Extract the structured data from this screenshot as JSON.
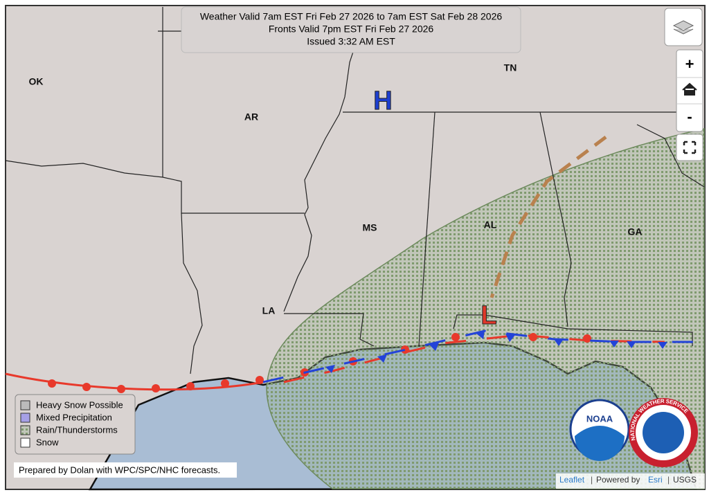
{
  "header": {
    "lines": [
      "Weather Valid 7am EST Fri Feb 27 2026 to 7am EST Sat Feb 28 2026",
      "Fronts Valid 7pm EST Fri Feb 27 2026",
      "Issued 3:32 AM EST"
    ]
  },
  "states": [
    "OK",
    "AR",
    "TN",
    "MS",
    "AL",
    "GA",
    "LA"
  ],
  "pressure_centers": [
    "H",
    "L"
  ],
  "legend": [
    "Heavy Snow Possible",
    "Mixed Precipitation",
    "Rain/Thunderstorms",
    "Snow"
  ],
  "zoom": [
    "+",
    "-"
  ],
  "credit": "Prepared by Dolan with WPC/SPC/NHC forecasts.",
  "attribution": [
    "Leaflet",
    "|",
    "Powered by",
    "Esri",
    "|",
    "USGS"
  ],
  "logos": {
    "noaa": "NOAA",
    "nws": "NATIONAL WEATHER SERVICE"
  }
}
